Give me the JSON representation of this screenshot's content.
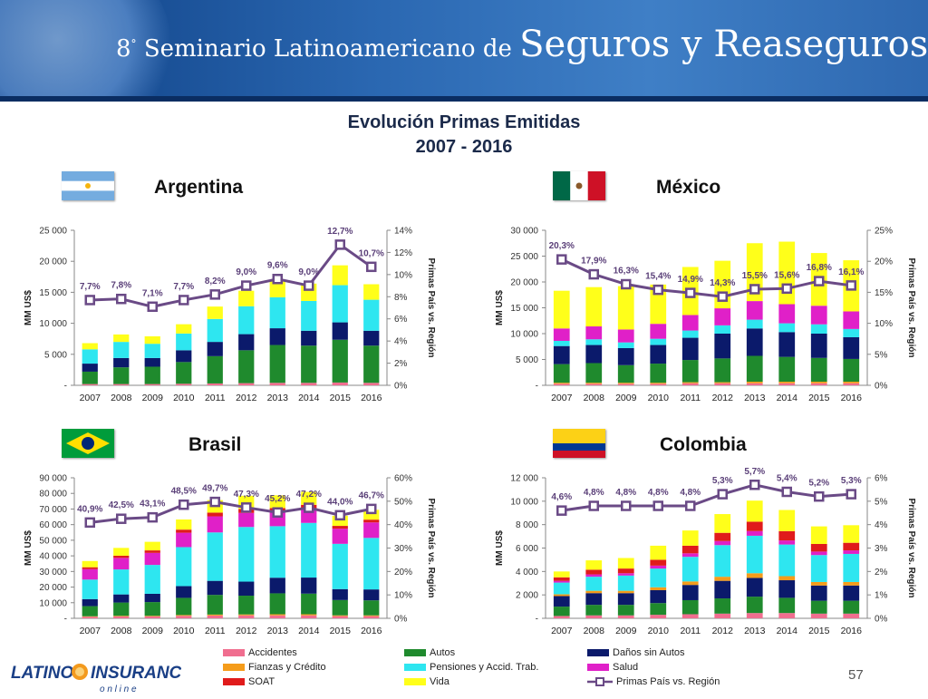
{
  "header": {
    "ordinal": "8",
    "ordinal_suffix": "°",
    "text_small": "Seminario Latinoamericano de",
    "text_big": "Seguros y Reaseguros"
  },
  "main_title": {
    "line1": "Evolución Primas Emitidas",
    "line2": "2007 - 2016"
  },
  "legend": {
    "items": [
      {
        "label": "Accidentes",
        "color": "#f06e8f"
      },
      {
        "label": "Fianzas y Crédito",
        "color": "#f59c1a"
      },
      {
        "label": "SOAT",
        "color": "#e01b1b"
      },
      {
        "label": "Autos",
        "color": "#1f8a2d"
      },
      {
        "label": "Pensiones y Accid. Trab.",
        "color": "#2ee6f0"
      },
      {
        "label": "Vida",
        "color": "#ffff1a"
      },
      {
        "label": "Daños sin Autos",
        "color": "#0b1a6b"
      },
      {
        "label": "Salud",
        "color": "#e020c8"
      },
      {
        "label": "Primas País vs. Región",
        "color": "#6a4a86"
      }
    ]
  },
  "logo": {
    "text_left": "LATINO",
    "text_right": "INSURANCE",
    "tagline": "o n  l i n e"
  },
  "page_number": "57",
  "chart_data": [
    {
      "type": "bar",
      "country": "Argentina",
      "flag": "argentina",
      "categories": [
        "2007",
        "2008",
        "2009",
        "2010",
        "2011",
        "2012",
        "2013",
        "2014",
        "2015",
        "2016"
      ],
      "ylabel": "MM US$",
      "y2label": "Primas País vs. Región",
      "ylim": [
        0,
        25000
      ],
      "yticks": [
        0,
        5000,
        10000,
        15000,
        20000,
        25000
      ],
      "ytick_labels": [
        "-",
        "5 000",
        "10 000",
        "15 000",
        "20 000",
        "25 000"
      ],
      "y2lim": [
        0,
        14
      ],
      "y2ticks": [
        0,
        2,
        4,
        6,
        8,
        10,
        12,
        14
      ],
      "y2tick_labels": [
        "0%",
        "2%",
        "4%",
        "6%",
        "8%",
        "10%",
        "12%",
        "14%"
      ],
      "stack_order": [
        "Accidentes",
        "Fianzas y Crédito",
        "SOAT",
        "Autos",
        "Daños sin Autos",
        "Salud",
        "Pensiones y Accid. Trab.",
        "Vida"
      ],
      "series": [
        {
          "name": "Accidentes",
          "values": [
            200,
            200,
            200,
            250,
            300,
            350,
            400,
            400,
            450,
            400
          ]
        },
        {
          "name": "Fianzas y Crédito",
          "values": [
            0,
            0,
            0,
            0,
            0,
            0,
            0,
            0,
            0,
            0
          ]
        },
        {
          "name": "SOAT",
          "values": [
            0,
            0,
            0,
            0,
            0,
            0,
            0,
            0,
            0,
            0
          ]
        },
        {
          "name": "Autos",
          "values": [
            2000,
            2700,
            2800,
            3500,
            4400,
            5300,
            6100,
            6000,
            6900,
            6000
          ]
        },
        {
          "name": "Daños sin Autos",
          "values": [
            1300,
            1500,
            1400,
            1900,
            2300,
            2600,
            2700,
            2400,
            2800,
            2400
          ]
        },
        {
          "name": "Salud",
          "values": [
            0,
            0,
            0,
            0,
            0,
            0,
            0,
            0,
            0,
            0
          ]
        },
        {
          "name": "Pensiones y Accid. Trab.",
          "values": [
            2300,
            2600,
            2300,
            2700,
            3700,
            4500,
            5000,
            4800,
            6000,
            5000
          ]
        },
        {
          "name": "Vida",
          "values": [
            1000,
            1200,
            1200,
            1500,
            2000,
            2500,
            2600,
            2800,
            3200,
            2500
          ]
        }
      ],
      "line": {
        "name": "Primas País vs. Región",
        "values": [
          7.7,
          7.8,
          7.1,
          7.7,
          8.2,
          9.0,
          9.6,
          9.0,
          12.7,
          10.7
        ],
        "labels": [
          "7,7%",
          "7,8%",
          "7,1%",
          "7,7%",
          "8,2%",
          "9,0%",
          "9,6%",
          "9,0%",
          "12,7%",
          "10,7%"
        ]
      }
    },
    {
      "type": "bar",
      "country": "México",
      "flag": "mexico",
      "categories": [
        "2007",
        "2008",
        "2009",
        "2010",
        "2011",
        "2012",
        "2013",
        "2014",
        "2015",
        "2016"
      ],
      "ylabel": "MM US$",
      "y2label": "Primas País vs. Región",
      "ylim": [
        0,
        30000
      ],
      "yticks": [
        0,
        5000,
        10000,
        15000,
        20000,
        25000,
        30000
      ],
      "ytick_labels": [
        "-",
        "5 000",
        "10 000",
        "15 000",
        "20 000",
        "25 000",
        "30 000"
      ],
      "y2lim": [
        0,
        25
      ],
      "y2ticks": [
        0,
        5,
        10,
        15,
        20,
        25
      ],
      "y2tick_labels": [
        "0%",
        "5%",
        "10%",
        "15%",
        "20%",
        "25%"
      ],
      "stack_order": [
        "Accidentes",
        "Fianzas y Crédito",
        "SOAT",
        "Autos",
        "Daños sin Autos",
        "Pensiones y Accid. Trab.",
        "Salud",
        "Vida"
      ],
      "series": [
        {
          "name": "Accidentes",
          "values": [
            300,
            300,
            300,
            300,
            400,
            400,
            400,
            400,
            400,
            400
          ]
        },
        {
          "name": "Fianzas y Crédito",
          "values": [
            200,
            200,
            200,
            200,
            200,
            200,
            300,
            300,
            300,
            300
          ]
        },
        {
          "name": "SOAT",
          "values": [
            0,
            0,
            0,
            0,
            0,
            0,
            0,
            0,
            0,
            0
          ]
        },
        {
          "name": "Autos",
          "values": [
            3600,
            3800,
            3400,
            3700,
            4300,
            4600,
            5000,
            4800,
            4600,
            4400
          ]
        },
        {
          "name": "Daños sin Autos",
          "values": [
            3500,
            3500,
            3300,
            3600,
            4300,
            4800,
            5300,
            4800,
            4700,
            4200
          ]
        },
        {
          "name": "Pensiones y Accid. Trab.",
          "values": [
            1000,
            1100,
            1100,
            1200,
            1400,
            1600,
            1700,
            1700,
            1800,
            1600
          ]
        },
        {
          "name": "Salud",
          "values": [
            2400,
            2500,
            2500,
            2900,
            3000,
            3300,
            3600,
            3700,
            3600,
            3400
          ]
        },
        {
          "name": "Vida",
          "values": [
            7300,
            7600,
            8400,
            7600,
            9300,
            9200,
            11200,
            12100,
            10200,
            9900
          ]
        }
      ],
      "line": {
        "name": "Primas País vs. Región",
        "values": [
          20.3,
          17.9,
          16.3,
          15.4,
          14.9,
          14.3,
          15.5,
          15.6,
          16.8,
          16.1
        ],
        "labels": [
          "20,3%",
          "17,9%",
          "16,3%",
          "15,4%",
          "14,9%",
          "14,3%",
          "15,5%",
          "15,6%",
          "16,8%",
          "16,1%"
        ]
      }
    },
    {
      "type": "bar",
      "country": "Brasil",
      "flag": "brasil",
      "categories": [
        "2007",
        "2008",
        "2009",
        "2010",
        "2011",
        "2012",
        "2013",
        "2014",
        "2015",
        "2016"
      ],
      "ylabel": "MM US$",
      "y2label": "Primas País vs. Región",
      "ylim": [
        0,
        90000
      ],
      "yticks": [
        0,
        10000,
        20000,
        30000,
        40000,
        50000,
        60000,
        70000,
        80000,
        90000
      ],
      "ytick_labels": [
        "-",
        "10 000",
        "20 000",
        "30 000",
        "40 000",
        "50 000",
        "60 000",
        "70 000",
        "80 000",
        "90 000"
      ],
      "y2lim": [
        0,
        60
      ],
      "y2ticks": [
        0,
        10,
        20,
        30,
        40,
        50,
        60
      ],
      "y2tick_labels": [
        "0%",
        "10%",
        "20%",
        "30%",
        "40%",
        "50%",
        "60%"
      ],
      "stack_order": [
        "Accidentes",
        "Fianzas y Crédito",
        "Autos",
        "Daños sin Autos",
        "Pensiones y Accid. Trab.",
        "Salud",
        "SOAT",
        "Vida"
      ],
      "series": [
        {
          "name": "Accidentes",
          "values": [
            1000,
            1200,
            1200,
            1600,
            1800,
            1900,
            1900,
            1900,
            1400,
            1400
          ]
        },
        {
          "name": "Fianzas y Crédito",
          "values": [
            300,
            400,
            400,
            500,
            600,
            600,
            700,
            700,
            500,
            500
          ]
        },
        {
          "name": "Autos",
          "values": [
            6500,
            8500,
            8800,
            11000,
            12600,
            12000,
            13400,
            13200,
            9800,
            9600
          ]
        },
        {
          "name": "Daños sin Autos",
          "values": [
            4500,
            5200,
            5300,
            7500,
            9000,
            9000,
            10000,
            10300,
            7000,
            7000
          ]
        },
        {
          "name": "Pensiones y Accid. Trab.",
          "values": [
            12500,
            16000,
            18500,
            25000,
            31000,
            35000,
            33000,
            35000,
            29000,
            33000
          ]
        },
        {
          "name": "Salud",
          "values": [
            6700,
            7400,
            7700,
            9200,
            10300,
            9000,
            9000,
            9000,
            9700,
            9900
          ]
        },
        {
          "name": "SOAT",
          "values": [
            1200,
            1400,
            1600,
            2000,
            2400,
            2500,
            2600,
            2600,
            1800,
            1800
          ]
        },
        {
          "name": "Vida",
          "values": [
            4000,
            5000,
            5500,
            6500,
            8000,
            8500,
            8200,
            8300,
            6500,
            6300
          ]
        }
      ],
      "line": {
        "name": "Primas País vs. Región",
        "values": [
          40.9,
          42.5,
          43.1,
          48.5,
          49.7,
          47.3,
          45.2,
          47.2,
          44.0,
          46.7
        ],
        "labels": [
          "40,9%",
          "42,5%",
          "43,1%",
          "48,5%",
          "49,7%",
          "47,3%",
          "45,2%",
          "47,2%",
          "44,0%",
          "46,7%"
        ]
      }
    },
    {
      "type": "bar",
      "country": "Colombia",
      "flag": "colombia",
      "categories": [
        "2007",
        "2008",
        "2009",
        "2010",
        "2011",
        "2012",
        "2013",
        "2014",
        "2015",
        "2016"
      ],
      "ylabel": "MM US$",
      "y2label": "Primas País vs. Región",
      "ylim": [
        0,
        12000
      ],
      "yticks": [
        0,
        2000,
        4000,
        6000,
        8000,
        10000,
        12000
      ],
      "ytick_labels": [
        "-",
        "2 000",
        "4 000",
        "6 000",
        "8 000",
        "10 000",
        "12 000"
      ],
      "y2lim": [
        0,
        6
      ],
      "y2ticks": [
        0,
        1,
        2,
        3,
        4,
        5,
        6
      ],
      "y2tick_labels": [
        "0%",
        "1%",
        "2%",
        "3%",
        "4%",
        "5%",
        "6%"
      ],
      "stack_order": [
        "Accidentes",
        "Autos",
        "Daños sin Autos",
        "Fianzas y Crédito",
        "Pensiones y Accid. Trab.",
        "Salud",
        "SOAT",
        "Vida"
      ],
      "series": [
        {
          "name": "Accidentes",
          "values": [
            200,
            250,
            250,
            300,
            350,
            400,
            450,
            450,
            400,
            400
          ]
        },
        {
          "name": "Autos",
          "values": [
            800,
            900,
            900,
            1000,
            1200,
            1300,
            1400,
            1300,
            1100,
            1100
          ]
        },
        {
          "name": "Daños sin Autos",
          "values": [
            900,
            1000,
            1000,
            1100,
            1300,
            1500,
            1600,
            1500,
            1300,
            1300
          ]
        },
        {
          "name": "Fianzas y Crédito",
          "values": [
            150,
            200,
            200,
            250,
            300,
            350,
            400,
            350,
            300,
            300
          ]
        },
        {
          "name": "Pensiones y Accid. Trab.",
          "values": [
            1000,
            1200,
            1300,
            1600,
            2100,
            2700,
            3200,
            2700,
            2300,
            2400
          ]
        },
        {
          "name": "Salud",
          "values": [
            150,
            200,
            200,
            250,
            300,
            350,
            400,
            350,
            300,
            300
          ]
        },
        {
          "name": "SOAT",
          "values": [
            300,
            400,
            400,
            500,
            650,
            700,
            800,
            800,
            650,
            650
          ]
        },
        {
          "name": "Vida",
          "values": [
            500,
            800,
            900,
            1200,
            1300,
            1600,
            1800,
            1800,
            1500,
            1500
          ]
        }
      ],
      "line": {
        "name": "Primas País vs. Región",
        "values": [
          4.6,
          4.8,
          4.8,
          4.8,
          4.8,
          5.3,
          5.7,
          5.4,
          5.2,
          5.3
        ],
        "labels": [
          "4,6%",
          "4,8%",
          "4,8%",
          "4,8%",
          "4,8%",
          "5,3%",
          "5,7%",
          "5,4%",
          "5,2%",
          "5,3%"
        ]
      }
    }
  ]
}
